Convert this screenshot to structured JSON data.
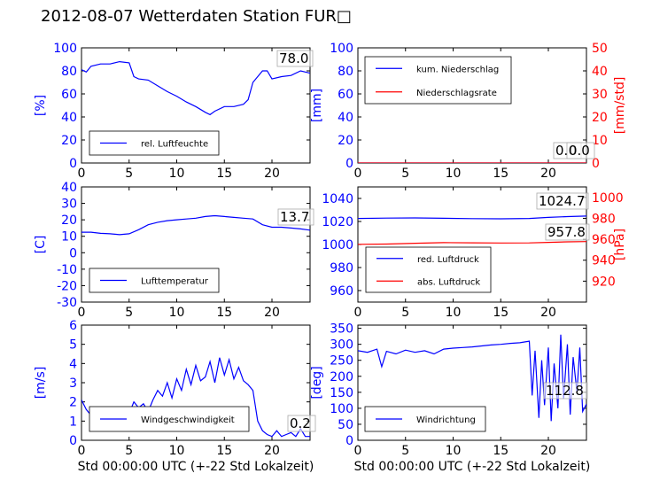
{
  "title": "2012-08-07 Wetterdaten Station FUR□",
  "colors": {
    "primary": "#0000ff",
    "secondary": "#ff0000",
    "axis": "#000000"
  },
  "chart_data": [
    {
      "id": "humidity",
      "type": "line",
      "xlabel": "",
      "ylabel": "[%]",
      "y2label": "",
      "xlim": [
        0,
        24
      ],
      "ylim": [
        0,
        100
      ],
      "xticks": [
        0,
        5,
        10,
        15,
        20
      ],
      "yticks": [
        0,
        20,
        40,
        60,
        80,
        100
      ],
      "last_value": "78.0",
      "legend": {
        "position": "bottom-left"
      },
      "series": [
        {
          "name": "rel. Luftfeuchte",
          "axis": "left",
          "color": "#0000ff",
          "x": [
            0,
            0.5,
            1,
            2,
            3,
            4,
            5,
            5.5,
            6,
            7,
            8,
            9,
            10,
            11,
            12,
            13,
            13.5,
            14,
            15,
            16,
            17,
            17.5,
            18,
            19,
            19.5,
            20,
            21,
            22,
            23,
            24
          ],
          "y": [
            81,
            79,
            84,
            86,
            86,
            88,
            87,
            75,
            73,
            72,
            67,
            62,
            58,
            53,
            49,
            44,
            42,
            45,
            49,
            49,
            51,
            55,
            70,
            80,
            80,
            73,
            75,
            76,
            80,
            78
          ]
        }
      ]
    },
    {
      "id": "precipitation",
      "type": "line",
      "xlabel": "",
      "ylabel": "[mm]",
      "y2label": "[mm/std]",
      "xlim": [
        0,
        24
      ],
      "ylim": [
        0,
        100
      ],
      "y2lim": [
        0,
        50
      ],
      "xticks": [
        0,
        5,
        10,
        15,
        20
      ],
      "yticks": [
        0,
        20,
        40,
        60,
        80,
        100
      ],
      "y2ticks": [
        0,
        10,
        20,
        30,
        40,
        50
      ],
      "last_value": "0.0",
      "last_value2": "0.0",
      "legend": {
        "position": "top-left"
      },
      "series": [
        {
          "name": "kum. Niederschlag",
          "axis": "left",
          "color": "#0000ff",
          "x": [
            0,
            24
          ],
          "y": [
            0,
            0
          ]
        },
        {
          "name": "Niederschlagsrate",
          "axis": "right",
          "color": "#ff0000",
          "x": [
            0,
            24
          ],
          "y": [
            0,
            0
          ]
        }
      ]
    },
    {
      "id": "temperature",
      "type": "line",
      "xlabel": "",
      "ylabel": "[C]",
      "y2label": "",
      "xlim": [
        0,
        24
      ],
      "ylim": [
        -30,
        40
      ],
      "xticks": [
        0,
        5,
        10,
        15,
        20
      ],
      "yticks": [
        -30,
        -20,
        -10,
        0,
        10,
        20,
        30,
        40
      ],
      "last_value": "13.7",
      "legend": {
        "position": "bottom-left"
      },
      "series": [
        {
          "name": "Lufttemperatur",
          "axis": "left",
          "color": "#0000ff",
          "x": [
            0,
            1,
            2,
            3,
            4,
            5,
            6,
            7,
            8,
            9,
            10,
            11,
            12,
            13,
            14,
            15,
            16,
            17,
            18,
            19,
            20,
            21,
            22,
            23,
            24
          ],
          "y": [
            12.5,
            12.5,
            11.8,
            11.5,
            11,
            11.5,
            14,
            17,
            18.5,
            19.5,
            20,
            20.5,
            21,
            22,
            22.5,
            22,
            21.5,
            21,
            20.5,
            17,
            15.5,
            15.5,
            15,
            14.5,
            13.7
          ]
        }
      ]
    },
    {
      "id": "pressure",
      "type": "line",
      "xlabel": "",
      "ylabel": "",
      "y2label": "[hPa]",
      "xlim": [
        0,
        24
      ],
      "ylim": [
        950,
        1050
      ],
      "y2lim": [
        900,
        1010
      ],
      "xticks": [
        0,
        5,
        10,
        15,
        20
      ],
      "yticks": [
        960,
        980,
        1000,
        1020,
        1040
      ],
      "y2ticks": [
        920,
        940,
        960,
        980,
        1000
      ],
      "last_value": "1024.7",
      "last_value2": "957.8",
      "legend": {
        "position": "bottom-left"
      },
      "series": [
        {
          "name": "red. Luftdruck",
          "axis": "left",
          "color": "#0000ff",
          "x": [
            0,
            3,
            6,
            9,
            12,
            15,
            18,
            20,
            22,
            24
          ],
          "y": [
            1022.6,
            1022.9,
            1023.1,
            1022.8,
            1022.5,
            1022.3,
            1022.6,
            1023.5,
            1024.2,
            1024.7
          ]
        },
        {
          "name": "abs. Luftdruck",
          "axis": "right",
          "color": "#ff0000",
          "x": [
            0,
            3,
            6,
            9,
            12,
            15,
            18,
            20,
            22,
            24
          ],
          "y": [
            955.2,
            955.4,
            956.2,
            956.8,
            956.6,
            956.4,
            956.5,
            957.0,
            957.5,
            957.8
          ]
        }
      ]
    },
    {
      "id": "wind_speed",
      "type": "line",
      "xlabel": "Std 00:00:00 UTC (+-22 Std Lokalzeit)",
      "ylabel": "[m/s]",
      "y2label": "",
      "xlim": [
        0,
        24
      ],
      "ylim": [
        0,
        6
      ],
      "xticks": [
        0,
        5,
        10,
        15,
        20
      ],
      "yticks": [
        0,
        1,
        2,
        3,
        4,
        5,
        6
      ],
      "last_value": "0.2",
      "legend": {
        "position": "bottom-center"
      },
      "series": [
        {
          "name": "Windgeschwindigkeit",
          "axis": "left",
          "color": "#0000ff",
          "x": [
            0,
            0.5,
            1,
            1.5,
            2,
            2.5,
            3,
            3.5,
            4,
            4.5,
            5,
            5.5,
            6,
            6.5,
            7,
            7.5,
            8,
            8.5,
            9,
            9.5,
            10,
            10.5,
            11,
            11.5,
            12,
            12.5,
            13,
            13.5,
            14,
            14.5,
            15,
            15.5,
            16,
            16.5,
            17,
            17.5,
            18,
            18.5,
            19,
            19.5,
            20,
            20.5,
            21,
            21.5,
            22,
            22.5,
            23,
            23.5,
            24
          ],
          "y": [
            2.1,
            1.6,
            1.3,
            1.1,
            1.5,
            1.0,
            1.2,
            1.1,
            1.3,
            1.2,
            1.4,
            2.0,
            1.7,
            1.9,
            1.5,
            2.1,
            2.6,
            2.3,
            3.0,
            2.2,
            3.2,
            2.6,
            3.7,
            2.9,
            3.9,
            3.1,
            3.3,
            4.1,
            3.0,
            4.3,
            3.4,
            4.2,
            3.2,
            3.8,
            3.1,
            2.9,
            2.6,
            1.0,
            0.5,
            0.3,
            0.2,
            0.5,
            0.2,
            0.3,
            0.4,
            0.2,
            0.6,
            0.2,
            0.2
          ]
        }
      ]
    },
    {
      "id": "wind_direction",
      "type": "line",
      "xlabel": "Std 00:00:00 UTC (+-22 Std Lokalzeit)",
      "ylabel": "[deg]",
      "y2label": "",
      "xlim": [
        0,
        24
      ],
      "ylim": [
        0,
        360
      ],
      "xticks": [
        0,
        5,
        10,
        15,
        20
      ],
      "yticks": [
        0,
        50,
        100,
        150,
        200,
        250,
        300,
        350
      ],
      "last_value": "112.8",
      "legend": {
        "position": "bottom-left"
      },
      "series": [
        {
          "name": "Windrichtung",
          "axis": "left",
          "color": "#0000ff",
          "x": [
            0,
            1,
            2,
            2.5,
            3,
            4,
            5,
            6,
            7,
            8,
            9,
            10,
            11,
            12,
            13,
            14,
            15,
            16,
            17,
            18,
            18.3,
            18.6,
            19,
            19.3,
            19.6,
            20,
            20.3,
            20.6,
            21,
            21.3,
            21.6,
            22,
            22.3,
            22.6,
            23,
            23.3,
            23.6,
            24
          ],
          "y": [
            280,
            275,
            285,
            230,
            278,
            270,
            282,
            275,
            280,
            270,
            285,
            288,
            290,
            292,
            295,
            298,
            300,
            303,
            305,
            310,
            140,
            280,
            70,
            250,
            110,
            290,
            60,
            240,
            100,
            330,
            130,
            300,
            80,
            260,
            150,
            290,
            90,
            113
          ]
        }
      ]
    }
  ]
}
